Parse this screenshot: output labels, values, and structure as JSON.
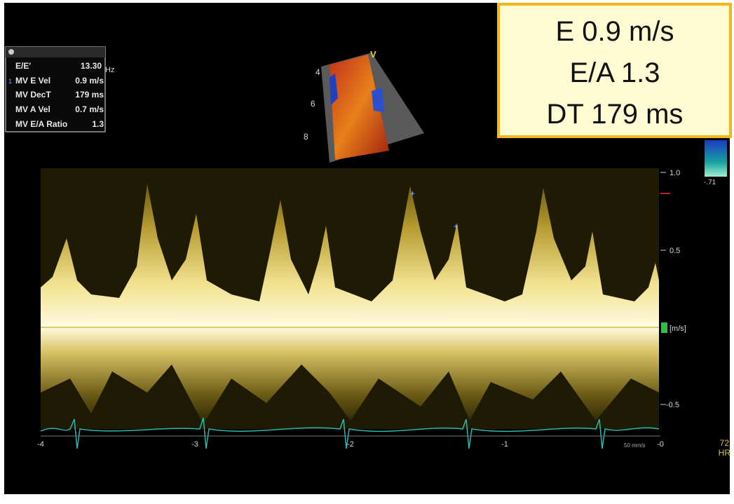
{
  "measurements": {
    "rows": [
      {
        "label": "E/E'",
        "value": "13.30",
        "unit": "Hz"
      },
      {
        "marker": "1",
        "label": "MV E Vel",
        "value": "0.9 m/s"
      },
      {
        "label": "MV DecT",
        "value": "179 ms"
      },
      {
        "label": "MV A Vel",
        "value": "0.7 m/s"
      },
      {
        "label": "MV E/A Ratio",
        "value": "1.3"
      }
    ]
  },
  "annotation": {
    "lines": [
      "E 0.9 m/s",
      "E/A 1.3",
      "DT 179 ms"
    ]
  },
  "sector": {
    "depth_labels": [
      "4",
      "6",
      "8"
    ],
    "label": "V"
  },
  "color_bar": {
    "label": "-.71"
  },
  "velocity_scale": {
    "labels": [
      "1.0",
      "0.5",
      "-0.5"
    ],
    "unit": "[m/s]"
  },
  "time_scale": {
    "labels": [
      "-4",
      "-3",
      "-2",
      "-1",
      "-0"
    ],
    "sweep": "50 mm/s"
  },
  "heart_rate": {
    "value": "72",
    "label": "HR"
  }
}
